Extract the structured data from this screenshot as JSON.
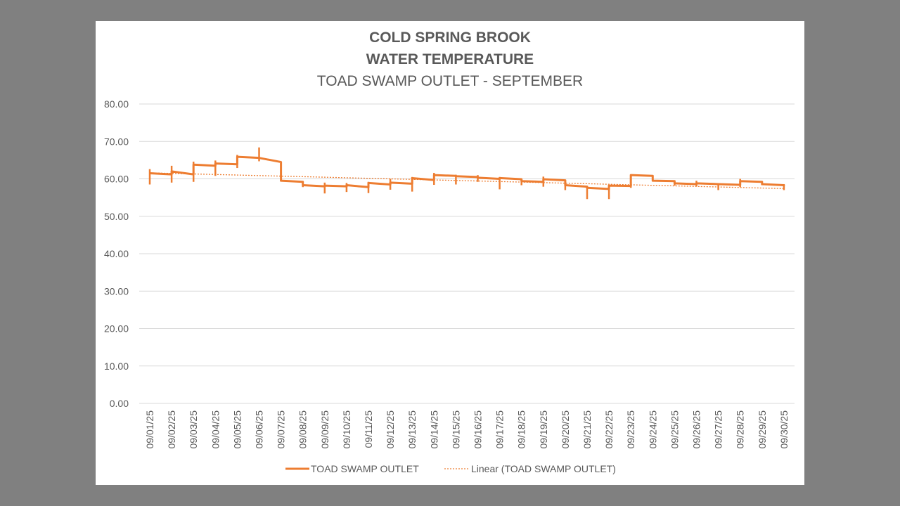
{
  "colors": {
    "series": "#ED7D31",
    "gridline": "#D9D9D9",
    "text": "#595959",
    "background": "#808080",
    "panel": "#FFFFFF"
  },
  "chart_data": {
    "type": "line",
    "title": "COLD SPRING BROOK",
    "subtitle": "WATER TEMPERATURE",
    "subtitle2": "TOAD SWAMP OUTLET - SEPTEMBER",
    "xlabel": "",
    "ylabel": "",
    "ylim": [
      0,
      80
    ],
    "yticks": [
      "0.00",
      "10.00",
      "20.00",
      "30.00",
      "40.00",
      "50.00",
      "60.00",
      "70.00",
      "80.00"
    ],
    "categories": [
      "09/01/25",
      "09/02/25",
      "09/03/25",
      "09/04/25",
      "09/05/25",
      "09/06/25",
      "09/07/25",
      "09/08/25",
      "09/09/25",
      "09/10/25",
      "09/11/25",
      "09/12/25",
      "09/13/25",
      "09/14/25",
      "09/15/25",
      "09/16/25",
      "09/17/25",
      "09/18/25",
      "09/19/25",
      "09/20/25",
      "09/21/25",
      "09/22/25",
      "09/23/25",
      "09/24/25",
      "09/25/25",
      "09/26/25",
      "09/27/25",
      "09/28/25",
      "09/29/25",
      "09/30/25"
    ],
    "grid": true,
    "legend_position": "bottom",
    "series": [
      {
        "name": "TOAD SWAMP OUTLET",
        "daily": [
          {
            "start": 61.5,
            "end": 61.2,
            "min": 58.5,
            "max": 62.6
          },
          {
            "start": 62.0,
            "end": 61.2,
            "min": 59.0,
            "max": 63.5
          },
          {
            "start": 63.8,
            "end": 63.5,
            "min": 59.2,
            "max": 64.6
          },
          {
            "start": 64.1,
            "end": 63.9,
            "min": 60.8,
            "max": 64.9
          },
          {
            "start": 65.9,
            "end": 65.6,
            "min": 62.9,
            "max": 66.4
          },
          {
            "start": 65.6,
            "end": 64.5,
            "min": 64.7,
            "max": 68.4
          },
          {
            "start": 59.5,
            "end": 59.2,
            "min": 59.3,
            "max": 59.7
          },
          {
            "start": 58.3,
            "end": 58.0,
            "min": 57.8,
            "max": 59.2
          },
          {
            "start": 58.2,
            "end": 58.0,
            "min": 56.1,
            "max": 59.0
          },
          {
            "start": 58.3,
            "end": 57.8,
            "min": 56.5,
            "max": 58.9
          },
          {
            "start": 58.9,
            "end": 58.5,
            "min": 56.2,
            "max": 59.2
          },
          {
            "start": 59.0,
            "end": 58.7,
            "min": 57.1,
            "max": 60.0
          },
          {
            "start": 60.2,
            "end": 59.7,
            "min": 56.6,
            "max": 60.5
          },
          {
            "start": 61.0,
            "end": 60.8,
            "min": 58.4,
            "max": 61.6
          },
          {
            "start": 60.7,
            "end": 60.5,
            "min": 58.5,
            "max": 61.1
          },
          {
            "start": 60.3,
            "end": 60.0,
            "min": 59.2,
            "max": 61.0
          },
          {
            "start": 60.2,
            "end": 59.9,
            "min": 57.2,
            "max": 60.5
          },
          {
            "start": 59.4,
            "end": 59.2,
            "min": 58.3,
            "max": 60.0
          },
          {
            "start": 59.9,
            "end": 59.6,
            "min": 57.9,
            "max": 60.6
          },
          {
            "start": 58.3,
            "end": 57.9,
            "min": 57.0,
            "max": 58.5
          },
          {
            "start": 57.6,
            "end": 57.3,
            "min": 54.6,
            "max": 57.8
          },
          {
            "start": 58.2,
            "end": 58.1,
            "min": 54.6,
            "max": 58.4
          },
          {
            "start": 61.0,
            "end": 60.8,
            "min": 57.6,
            "max": 61.2
          },
          {
            "start": 59.5,
            "end": 59.4,
            "min": 59.3,
            "max": 59.7
          },
          {
            "start": 58.8,
            "end": 58.6,
            "min": 58.2,
            "max": 59.2
          },
          {
            "start": 58.8,
            "end": 58.6,
            "min": 58.0,
            "max": 59.5
          },
          {
            "start": 58.6,
            "end": 58.4,
            "min": 57.0,
            "max": 58.8
          },
          {
            "start": 59.4,
            "end": 59.2,
            "min": 57.8,
            "max": 60.0
          },
          {
            "start": 58.6,
            "end": 58.3,
            "min": 58.3,
            "max": 58.8
          },
          {
            "start": 58.4,
            "end": 58.2,
            "min": 57.0,
            "max": 58.6
          }
        ]
      },
      {
        "name": "Linear (TOAD SWAMP OUTLET)",
        "type": "trendline",
        "start_value": 61.6,
        "end_value": 57.4
      }
    ]
  }
}
